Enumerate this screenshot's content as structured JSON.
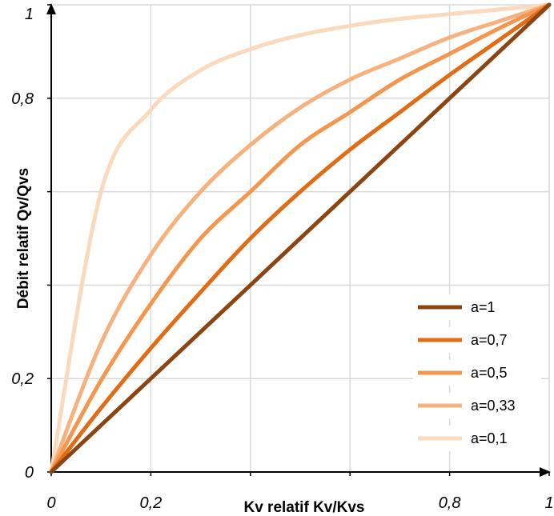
{
  "chart_data": {
    "type": "line",
    "title": "",
    "xlabel": "Kv relatif Kv/Kvs",
    "ylabel": "Débit relatif Qv/Qvs",
    "xlim": [
      0,
      1
    ],
    "ylim": [
      0,
      1
    ],
    "grid": true,
    "legend_position": "bottom-right",
    "x_ticks": [
      0,
      0.2,
      0.4,
      0.6,
      0.8,
      1
    ],
    "x_tick_labels": [
      "0",
      "0,2",
      "",
      "",
      "0,8",
      "1"
    ],
    "y_ticks": [
      0,
      0.2,
      0.4,
      0.6,
      0.8,
      1
    ],
    "y_tick_labels": [
      "0",
      "0,2",
      "",
      "",
      "0,8",
      "1"
    ],
    "x": [
      0,
      0.1,
      0.2,
      0.3,
      0.4,
      0.5,
      0.6,
      0.7,
      0.8,
      0.9,
      1.0
    ],
    "series": [
      {
        "name": "a=1",
        "color": "#8b4513",
        "values": [
          0,
          0.1,
          0.2,
          0.3,
          0.4,
          0.5,
          0.6,
          0.7,
          0.8,
          0.9,
          1.0
        ]
      },
      {
        "name": "a=0,7",
        "color": "#e06c16",
        "values": [
          0,
          0.137,
          0.265,
          0.385,
          0.5,
          0.6,
          0.69,
          0.77,
          0.85,
          0.925,
          1.0
        ]
      },
      {
        "name": "a=0,5",
        "color": "#f29650",
        "values": [
          0,
          0.196,
          0.36,
          0.5,
          0.6,
          0.7,
          0.77,
          0.84,
          0.895,
          0.95,
          1.0
        ]
      },
      {
        "name": "a=0,33",
        "color": "#f6b27e",
        "values": [
          0,
          0.276,
          0.465,
          0.6,
          0.7,
          0.78,
          0.84,
          0.885,
          0.93,
          0.965,
          1.0
        ]
      },
      {
        "name": "a=0,1",
        "color": "#fbd9bd",
        "values": [
          0,
          0.6,
          0.775,
          0.86,
          0.905,
          0.935,
          0.955,
          0.97,
          0.98,
          0.99,
          1.0
        ]
      }
    ]
  }
}
